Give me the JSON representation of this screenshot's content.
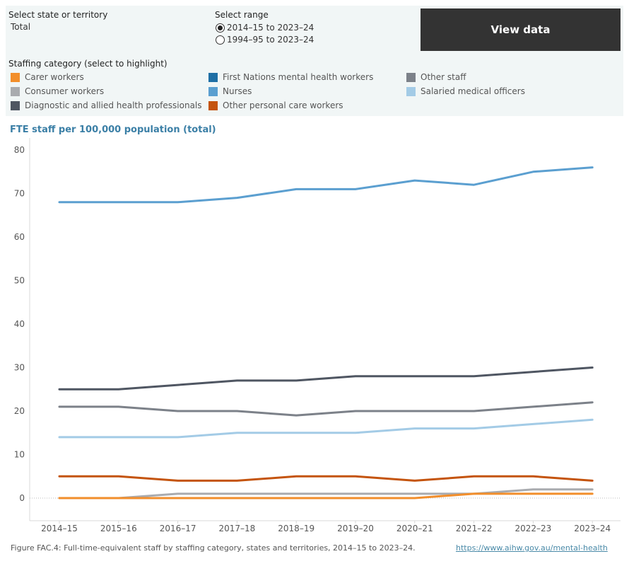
{
  "filters": {
    "state_label": "Select state or territory",
    "state_value": "Total",
    "range_label": "Select range",
    "range_options": [
      {
        "label": "2014–15 to 2023–24",
        "selected": true
      },
      {
        "label": "1994–95 to 2023–24",
        "selected": false
      }
    ],
    "view_data_label": "View data"
  },
  "legend": {
    "title": "Staffing category (select to highlight)",
    "items": [
      {
        "label": "Carer workers",
        "color": "#f28e2b"
      },
      {
        "label": "Consumer workers",
        "color": "#a9abaf"
      },
      {
        "label": "Diagnostic and allied health professionals",
        "color": "#4f5662"
      },
      {
        "label": "First Nations mental health workers",
        "color": "#1f6fa5"
      },
      {
        "label": "Nurses",
        "color": "#5b9fd0"
      },
      {
        "label": "Other personal care workers",
        "color": "#c4540e"
      },
      {
        "label": "Other staff",
        "color": "#7c8189"
      },
      {
        "label": "Salaried medical officers",
        "color": "#a3cbe6"
      }
    ]
  },
  "chart_title": "FTE staff per 100,000 population (total)",
  "caption": "Figure FAC.4: Full-time-equivalent staff by staffing category, states and territories, 2014–15 to 2023–24.",
  "source_link": "https://www.aihw.gov.au/mental-health",
  "chart_data": {
    "type": "line",
    "title": "FTE staff per 100,000 population (total)",
    "xlabel": "",
    "ylabel": "FTE staff per 100,000 population (total)",
    "ylim": [
      -5,
      80
    ],
    "yticks": [
      0,
      10,
      20,
      30,
      40,
      50,
      60,
      70,
      80
    ],
    "categories": [
      "2014–15",
      "2015–16",
      "2016–17",
      "2017–18",
      "2018–19",
      "2019–20",
      "2020–21",
      "2021–22",
      "2022–23",
      "2023–24"
    ],
    "series": [
      {
        "name": "Nurses",
        "color": "#5b9fd0",
        "values": [
          68,
          68,
          68,
          69,
          71,
          71,
          73,
          72,
          75,
          76
        ]
      },
      {
        "name": "Diagnostic and allied health professionals",
        "color": "#4f5662",
        "values": [
          25,
          25,
          26,
          27,
          27,
          28,
          28,
          28,
          29,
          30
        ]
      },
      {
        "name": "Other staff",
        "color": "#7c8189",
        "values": [
          21,
          21,
          20,
          20,
          19,
          20,
          20,
          20,
          21,
          22
        ]
      },
      {
        "name": "Salaried medical officers",
        "color": "#a3cbe6",
        "values": [
          14,
          14,
          14,
          15,
          15,
          15,
          16,
          16,
          17,
          18
        ]
      },
      {
        "name": "Other personal care workers",
        "color": "#c4540e",
        "values": [
          5,
          5,
          4,
          4,
          5,
          5,
          4,
          5,
          5,
          4
        ]
      },
      {
        "name": "Consumer workers",
        "color": "#a9abaf",
        "values": [
          0,
          0,
          1,
          1,
          1,
          1,
          1,
          1,
          2,
          2
        ]
      },
      {
        "name": "Carer workers",
        "color": "#f28e2b",
        "values": [
          0,
          0,
          0,
          0,
          0,
          0,
          0,
          1,
          1,
          1
        ]
      }
    ],
    "grid": false,
    "zero_line": "dotted"
  }
}
